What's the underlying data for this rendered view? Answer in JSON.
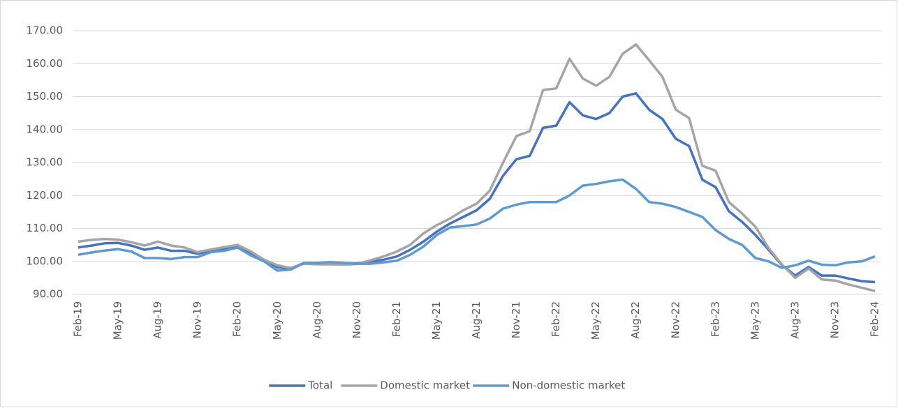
{
  "chart_data": {
    "type": "line",
    "categories": [
      "Feb-19",
      null,
      null,
      "May-19",
      null,
      null,
      "Aug-19",
      null,
      null,
      "Nov-19",
      null,
      null,
      "Feb-20",
      null,
      null,
      "May-20",
      null,
      null,
      "Aug-20",
      null,
      null,
      "Nov-20",
      null,
      null,
      "Feb-21",
      null,
      null,
      "May-21",
      null,
      null,
      "Aug-21",
      null,
      null,
      "Nov-21",
      null,
      null,
      "Feb-22",
      null,
      null,
      "May-22",
      null,
      null,
      "Aug-22",
      null,
      null,
      "Nov-22",
      null,
      null,
      "Feb-23",
      null,
      null,
      "May-23",
      null,
      null,
      "Aug-23",
      null,
      null,
      "Nov-23",
      null,
      null,
      "Feb-24"
    ],
    "series": [
      {
        "name": "Total",
        "color": "#4472c4",
        "values": [
          104.2,
          104.8,
          105.5,
          105.6,
          104.8,
          103.5,
          104.2,
          103.2,
          103.2,
          102.3,
          103.2,
          103.8,
          104.5,
          102.5,
          100.5,
          98.2,
          97.8,
          99.5,
          99.5,
          99.6,
          99.4,
          99.4,
          99.8,
          100.5,
          101.5,
          103.5,
          106,
          109,
          111.5,
          113.5,
          115.5,
          119,
          126,
          131,
          132,
          140.5,
          141.2,
          148.3,
          144.3,
          143.2,
          145,
          150,
          151,
          146,
          143.2,
          137.2,
          135,
          124.8,
          122.5,
          115.2,
          112,
          108,
          103.5,
          98.8,
          95.7,
          98.3,
          95.7,
          95.7,
          94.8,
          94,
          93.7
        ]
      },
      {
        "name": "Domestic market",
        "color": "#a5a5a5",
        "values": [
          106,
          106.5,
          106.8,
          106.6,
          105.8,
          104.8,
          106,
          104.8,
          104.2,
          102.8,
          103.6,
          104.3,
          105,
          103,
          100.5,
          98.8,
          98,
          99.3,
          99.1,
          99.1,
          99,
          99.2,
          100.3,
          101.5,
          103,
          105,
          108.5,
          111,
          113,
          115.5,
          117.5,
          121.5,
          130,
          138,
          139.5,
          152,
          152.5,
          161.5,
          155.5,
          153.3,
          156,
          163,
          165.8,
          161,
          156,
          146,
          143.5,
          129,
          127.5,
          118,
          114.5,
          110.5,
          104,
          99,
          95,
          97.8,
          94.5,
          94.2,
          93,
          92,
          91
        ]
      },
      {
        "name": "Non-domestic market",
        "color": "#5b9bd5",
        "values": [
          102,
          102.7,
          103.3,
          103.7,
          103,
          101,
          101,
          100.7,
          101.3,
          101.3,
          102.8,
          103.2,
          104.2,
          101.8,
          100,
          97.2,
          97.5,
          99.5,
          99.5,
          99.8,
          99.5,
          99.3,
          99.3,
          99.7,
          100.2,
          102,
          104.5,
          108,
          110.3,
          110.7,
          111.2,
          113,
          116,
          117.2,
          118,
          118,
          118,
          120,
          123,
          123.5,
          124.3,
          124.8,
          122,
          118,
          117.5,
          116.5,
          115,
          113.5,
          109.5,
          106.8,
          105,
          101,
          100,
          98,
          98.8,
          100.2,
          99,
          98.8,
          99.7,
          100,
          101.5
        ]
      }
    ],
    "ylim": [
      90,
      170
    ],
    "yticks": [
      {
        "value": 90,
        "label": "90.00"
      },
      {
        "value": 100,
        "label": "100.00"
      },
      {
        "value": 110,
        "label": "110.00"
      },
      {
        "value": 120,
        "label": "120.00"
      },
      {
        "value": 130,
        "label": "130.00"
      },
      {
        "value": 140,
        "label": "140.00"
      },
      {
        "value": 150,
        "label": "150.00"
      },
      {
        "value": 160,
        "label": "160.00"
      },
      {
        "value": 170,
        "label": "170.00"
      }
    ],
    "grid": true,
    "legend": "bottom"
  }
}
